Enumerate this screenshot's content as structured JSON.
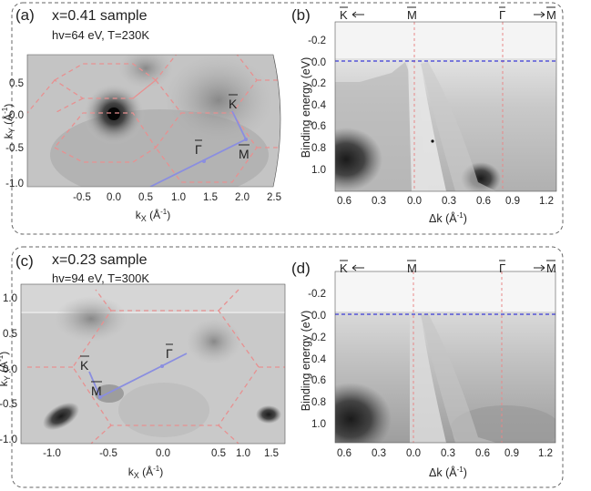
{
  "figure": {
    "rows": [
      {
        "fermi_map": {
          "letter": "(a)",
          "sample": "x=0.41 sample",
          "conditions": "hv=64 eV, T=230K",
          "x_label_main": "k",
          "x_label_sub": "X",
          "x_label_unit": " (Å",
          "x_label_exp": "-1",
          "x_label_close": ")",
          "y_label_main": "k",
          "y_label_sub": "Y",
          "y_label_unit": " (Å",
          "y_label_exp": "-1",
          "y_label_close": ")",
          "x_ticks": [
            "-0.5",
            "0.0",
            "0.5",
            "1.0",
            "1.5",
            "2.0",
            "2.5"
          ],
          "y_ticks": [
            "0.5",
            "0.0",
            "-0.5",
            "-1.0"
          ],
          "points": {
            "K": "K",
            "M": "M",
            "G": "Γ"
          }
        },
        "dispersion": {
          "letter": "(b)",
          "top_labels": {
            "K_left": "K",
            "M": "M",
            "G": "Γ",
            "M_right": "M"
          },
          "y_label": "Binding energy (eV)",
          "y_ticks": [
            "-0.2",
            "0.0",
            "0.2",
            "0.4",
            "0.6",
            "0.8",
            "1.0"
          ],
          "x_ticks": [
            "0.6",
            "0.3",
            "0.0",
            "0.3",
            "0.6",
            "0.9",
            "1.2"
          ],
          "x_label_main": "Δk",
          "x_label_unit": " (Å",
          "x_label_exp": "-1",
          "x_label_close": ")"
        }
      },
      {
        "fermi_map": {
          "letter": "(c)",
          "sample": "x=0.23 sample",
          "conditions": "hv=94 eV, T=300K",
          "x_label_main": "k",
          "x_label_sub": "X",
          "x_label_unit": " (Å",
          "x_label_exp": "-1",
          "x_label_close": ")",
          "y_label_main": "k",
          "y_label_sub": "Y",
          "y_label_unit": " (Å",
          "y_label_exp": "-1",
          "y_label_close": ")",
          "x_ticks": [
            "-1.0",
            "-0.5",
            "0.0",
            "0.5",
            "1.0",
            "1.5"
          ],
          "y_ticks": [
            "1.0",
            "0.5",
            "0.0",
            "-0.5",
            "-1.0"
          ],
          "points": {
            "K": "K",
            "M": "M",
            "G": "Γ"
          }
        },
        "dispersion": {
          "letter": "(d)",
          "top_labels": {
            "K_left": "K",
            "M": "M",
            "G": "Γ",
            "M_right": "M"
          },
          "y_label": "Binding energy (eV)",
          "y_ticks": [
            "-0.2",
            "0.0",
            "0.2",
            "0.4",
            "0.6",
            "0.8",
            "1.0"
          ],
          "x_ticks": [
            "0.6",
            "0.3",
            "0.0",
            "0.3",
            "0.6",
            "0.9",
            "1.2"
          ],
          "x_label_main": "Δk",
          "x_label_unit": " (Å",
          "x_label_exp": "-1",
          "x_label_close": ")"
        }
      }
    ]
  }
}
